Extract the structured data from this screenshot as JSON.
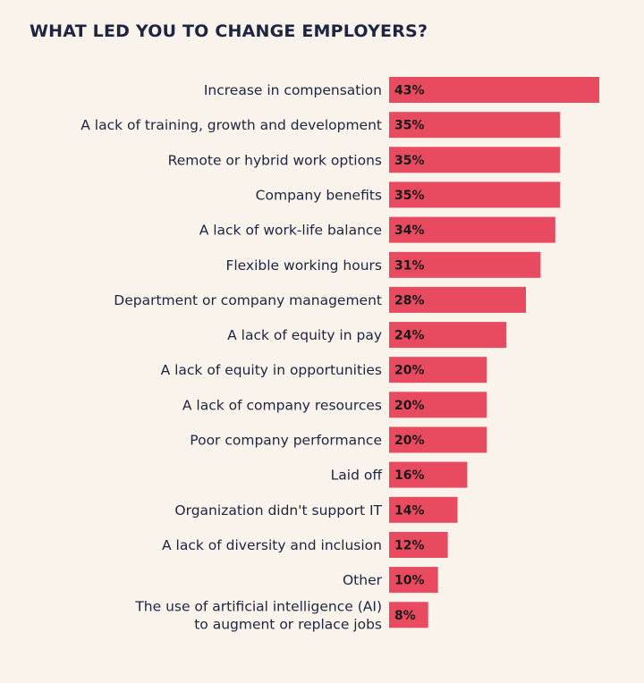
{
  "chart_data": {
    "type": "bar",
    "orientation": "horizontal",
    "title": "WHAT LED YOU TO CHANGE EMPLOYERS?",
    "categories": [
      "Increase in compensation",
      "A lack of training, growth and development",
      "Remote or hybrid work options",
      "Company benefits",
      "A lack of work-life balance",
      "Flexible working hours",
      "Department or company management",
      "A lack of equity in pay",
      "A lack of equity in opportunities",
      "A lack of company resources",
      "Poor company performance",
      "Laid off",
      "Organization didn't support IT",
      "A lack of diversity and inclusion",
      "Other",
      "The use of artificial intelligence (AI)\nto augment or replace jobs"
    ],
    "values": [
      43,
      35,
      35,
      35,
      34,
      31,
      28,
      24,
      20,
      20,
      20,
      16,
      14,
      12,
      10,
      8
    ],
    "value_labels": [
      "43%",
      "35%",
      "35%",
      "35%",
      "34%",
      "31%",
      "28%",
      "24%",
      "20%",
      "20%",
      "20%",
      "16%",
      "14%",
      "12%",
      "10%",
      "8%"
    ],
    "xlim": [
      0,
      43
    ],
    "grid": false,
    "bar_color": "#e84a5f",
    "label_color": "#1d2540",
    "background": "#f9f3ec"
  }
}
